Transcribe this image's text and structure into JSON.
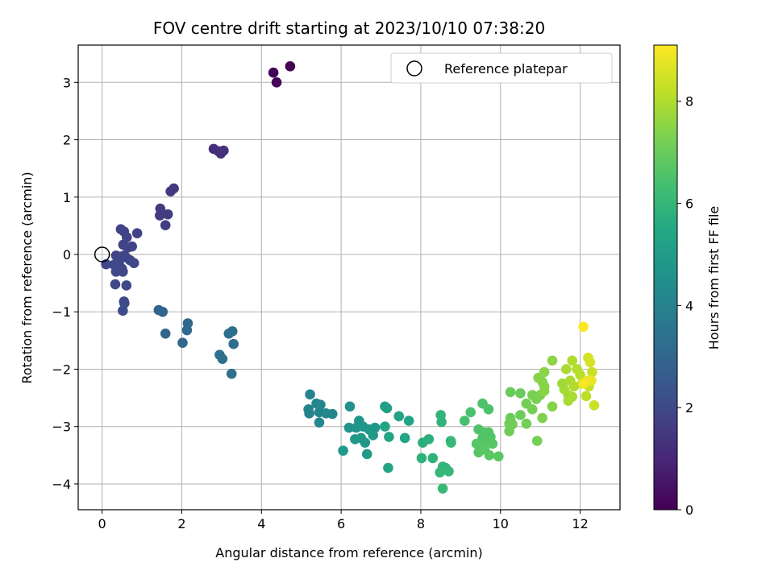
{
  "chart_data": {
    "type": "scatter",
    "title": "FOV centre drift starting at 2023/10/10 07:38:20",
    "xlabel": "Angular distance from reference (arcmin)",
    "ylabel": "Rotation from reference (arcmin)",
    "xlim": [
      -0.6,
      13.0
    ],
    "ylim": [
      -4.45,
      3.65
    ],
    "xticks": [
      0,
      2,
      4,
      6,
      8,
      10,
      12
    ],
    "yticks": [
      -4,
      -3,
      -2,
      -1,
      0,
      1,
      2,
      3
    ],
    "grid": true,
    "legend": {
      "placement": "top-right",
      "entries": [
        "Reference platepar"
      ]
    },
    "reference_point": {
      "x": 0,
      "y": 0,
      "label": "Reference platepar"
    },
    "colorbar": {
      "label": "Hours from first FF file",
      "colormap": "viridis",
      "range": [
        0,
        9.1
      ],
      "ticks": [
        0,
        2,
        4,
        6,
        8
      ]
    },
    "points": [
      {
        "x": 4.3,
        "y": 3.17,
        "c": 0.05
      },
      {
        "x": 4.38,
        "y": 3.0,
        "c": 0.1
      },
      {
        "x": 4.72,
        "y": 3.28,
        "c": 0.0
      },
      {
        "x": 2.8,
        "y": 1.84,
        "c": 1.2
      },
      {
        "x": 2.92,
        "y": 1.8,
        "c": 1.2
      },
      {
        "x": 2.98,
        "y": 1.76,
        "c": 1.25
      },
      {
        "x": 3.05,
        "y": 1.81,
        "c": 1.25
      },
      {
        "x": 1.72,
        "y": 1.1,
        "c": 1.5
      },
      {
        "x": 1.8,
        "y": 1.15,
        "c": 1.5
      },
      {
        "x": 1.46,
        "y": 0.8,
        "c": 1.6
      },
      {
        "x": 1.45,
        "y": 0.68,
        "c": 1.6
      },
      {
        "x": 1.65,
        "y": 0.7,
        "c": 1.6
      },
      {
        "x": 1.59,
        "y": 0.51,
        "c": 1.65
      },
      {
        "x": 0.47,
        "y": 0.44,
        "c": 1.75
      },
      {
        "x": 0.55,
        "y": 0.4,
        "c": 1.75
      },
      {
        "x": 0.62,
        "y": 0.3,
        "c": 1.8
      },
      {
        "x": 0.88,
        "y": 0.37,
        "c": 1.8
      },
      {
        "x": 0.53,
        "y": 0.17,
        "c": 1.8
      },
      {
        "x": 0.75,
        "y": 0.14,
        "c": 1.85
      },
      {
        "x": 0.65,
        "y": 0.12,
        "c": 1.85
      },
      {
        "x": 0.35,
        "y": -0.02,
        "c": 1.85
      },
      {
        "x": 0.45,
        "y": -0.04,
        "c": 1.9
      },
      {
        "x": 0.55,
        "y": -0.02,
        "c": 1.9
      },
      {
        "x": 0.6,
        "y": -0.05,
        "c": 1.9
      },
      {
        "x": 0.7,
        "y": -0.1,
        "c": 1.9
      },
      {
        "x": 0.8,
        "y": -0.15,
        "c": 1.95
      },
      {
        "x": 0.42,
        "y": -0.15,
        "c": 1.95
      },
      {
        "x": 0.3,
        "y": -0.18,
        "c": 1.95
      },
      {
        "x": 0.1,
        "y": -0.17,
        "c": 1.95
      },
      {
        "x": 0.35,
        "y": -0.3,
        "c": 2.0
      },
      {
        "x": 0.5,
        "y": -0.25,
        "c": 2.0
      },
      {
        "x": 0.52,
        "y": -0.3,
        "c": 2.0
      },
      {
        "x": 0.33,
        "y": -0.52,
        "c": 2.0
      },
      {
        "x": 0.61,
        "y": -0.54,
        "c": 2.0
      },
      {
        "x": 0.55,
        "y": -0.82,
        "c": 2.05
      },
      {
        "x": 0.56,
        "y": -0.85,
        "c": 2.05
      },
      {
        "x": 0.52,
        "y": -0.98,
        "c": 2.05
      },
      {
        "x": 1.42,
        "y": -0.97,
        "c": 2.9
      },
      {
        "x": 1.52,
        "y": -1.0,
        "c": 2.9
      },
      {
        "x": 1.59,
        "y": -1.38,
        "c": 3.0
      },
      {
        "x": 2.15,
        "y": -1.2,
        "c": 3.1
      },
      {
        "x": 2.13,
        "y": -1.32,
        "c": 3.1
      },
      {
        "x": 2.02,
        "y": -1.54,
        "c": 3.1
      },
      {
        "x": 3.18,
        "y": -1.38,
        "c": 3.3
      },
      {
        "x": 3.27,
        "y": -1.34,
        "c": 3.3
      },
      {
        "x": 3.3,
        "y": -1.56,
        "c": 3.3
      },
      {
        "x": 2.95,
        "y": -1.75,
        "c": 3.35
      },
      {
        "x": 3.02,
        "y": -1.82,
        "c": 3.35
      },
      {
        "x": 3.25,
        "y": -2.08,
        "c": 3.4
      },
      {
        "x": 5.22,
        "y": -2.44,
        "c": 4.0
      },
      {
        "x": 5.18,
        "y": -2.7,
        "c": 4.05
      },
      {
        "x": 5.2,
        "y": -2.77,
        "c": 4.05
      },
      {
        "x": 5.38,
        "y": -2.6,
        "c": 4.1
      },
      {
        "x": 5.48,
        "y": -2.62,
        "c": 4.1
      },
      {
        "x": 5.45,
        "y": -2.75,
        "c": 4.1
      },
      {
        "x": 5.62,
        "y": -2.77,
        "c": 4.15
      },
      {
        "x": 5.78,
        "y": -2.78,
        "c": 4.15
      },
      {
        "x": 5.45,
        "y": -2.93,
        "c": 4.2
      },
      {
        "x": 6.22,
        "y": -2.65,
        "c": 4.6
      },
      {
        "x": 6.45,
        "y": -2.9,
        "c": 4.65
      },
      {
        "x": 6.2,
        "y": -3.02,
        "c": 4.7
      },
      {
        "x": 6.38,
        "y": -3.02,
        "c": 4.7
      },
      {
        "x": 6.55,
        "y": -3.0,
        "c": 4.75
      },
      {
        "x": 6.7,
        "y": -3.05,
        "c": 4.75
      },
      {
        "x": 6.85,
        "y": -3.02,
        "c": 4.8
      },
      {
        "x": 6.35,
        "y": -3.22,
        "c": 4.8
      },
      {
        "x": 6.5,
        "y": -3.2,
        "c": 4.85
      },
      {
        "x": 6.6,
        "y": -3.28,
        "c": 4.85
      },
      {
        "x": 6.8,
        "y": -3.15,
        "c": 4.9
      },
      {
        "x": 6.05,
        "y": -3.42,
        "c": 4.9
      },
      {
        "x": 6.65,
        "y": -3.48,
        "c": 4.95
      },
      {
        "x": 7.1,
        "y": -2.65,
        "c": 5.1
      },
      {
        "x": 7.15,
        "y": -2.68,
        "c": 5.1
      },
      {
        "x": 7.45,
        "y": -2.82,
        "c": 5.2
      },
      {
        "x": 7.7,
        "y": -2.9,
        "c": 5.25
      },
      {
        "x": 7.1,
        "y": -3.0,
        "c": 5.25
      },
      {
        "x": 7.2,
        "y": -3.18,
        "c": 5.3
      },
      {
        "x": 7.6,
        "y": -3.2,
        "c": 5.3
      },
      {
        "x": 7.18,
        "y": -3.72,
        "c": 5.35
      },
      {
        "x": 8.05,
        "y": -3.28,
        "c": 5.7
      },
      {
        "x": 8.2,
        "y": -3.22,
        "c": 5.75
      },
      {
        "x": 8.02,
        "y": -3.55,
        "c": 5.8
      },
      {
        "x": 8.3,
        "y": -3.55,
        "c": 5.85
      },
      {
        "x": 8.5,
        "y": -2.8,
        "c": 5.9
      },
      {
        "x": 8.52,
        "y": -2.92,
        "c": 5.9
      },
      {
        "x": 8.55,
        "y": -3.7,
        "c": 5.95
      },
      {
        "x": 8.62,
        "y": -3.72,
        "c": 5.95
      },
      {
        "x": 8.48,
        "y": -3.8,
        "c": 6.0
      },
      {
        "x": 8.7,
        "y": -3.78,
        "c": 6.0
      },
      {
        "x": 8.75,
        "y": -3.25,
        "c": 6.05
      },
      {
        "x": 8.76,
        "y": -3.28,
        "c": 6.05
      },
      {
        "x": 8.55,
        "y": -4.08,
        "c": 6.1
      },
      {
        "x": 9.1,
        "y": -2.9,
        "c": 6.4
      },
      {
        "x": 9.25,
        "y": -2.75,
        "c": 6.45
      },
      {
        "x": 9.55,
        "y": -2.6,
        "c": 6.5
      },
      {
        "x": 9.7,
        "y": -2.7,
        "c": 6.5
      },
      {
        "x": 9.45,
        "y": -3.05,
        "c": 6.55
      },
      {
        "x": 9.6,
        "y": -3.1,
        "c": 6.55
      },
      {
        "x": 9.7,
        "y": -3.1,
        "c": 6.6
      },
      {
        "x": 9.75,
        "y": -3.18,
        "c": 6.6
      },
      {
        "x": 9.55,
        "y": -3.2,
        "c": 6.6
      },
      {
        "x": 9.4,
        "y": -3.3,
        "c": 6.65
      },
      {
        "x": 9.65,
        "y": -3.3,
        "c": 6.65
      },
      {
        "x": 9.8,
        "y": -3.3,
        "c": 6.7
      },
      {
        "x": 9.45,
        "y": -3.45,
        "c": 6.7
      },
      {
        "x": 9.6,
        "y": -3.4,
        "c": 6.7
      },
      {
        "x": 9.72,
        "y": -3.5,
        "c": 6.75
      },
      {
        "x": 9.95,
        "y": -3.52,
        "c": 6.75
      },
      {
        "x": 10.25,
        "y": -2.4,
        "c": 7.0
      },
      {
        "x": 10.5,
        "y": -2.42,
        "c": 7.0
      },
      {
        "x": 10.25,
        "y": -2.85,
        "c": 7.05
      },
      {
        "x": 10.5,
        "y": -2.8,
        "c": 7.05
      },
      {
        "x": 10.22,
        "y": -2.95,
        "c": 7.1
      },
      {
        "x": 10.3,
        "y": -2.96,
        "c": 7.1
      },
      {
        "x": 10.22,
        "y": -3.08,
        "c": 7.1
      },
      {
        "x": 10.65,
        "y": -2.95,
        "c": 7.15
      },
      {
        "x": 10.65,
        "y": -2.6,
        "c": 7.15
      },
      {
        "x": 10.8,
        "y": -2.7,
        "c": 7.2
      },
      {
        "x": 10.92,
        "y": -3.25,
        "c": 7.2
      },
      {
        "x": 10.8,
        "y": -2.45,
        "c": 7.25
      },
      {
        "x": 10.9,
        "y": -2.52,
        "c": 7.25
      },
      {
        "x": 11.0,
        "y": -2.45,
        "c": 7.3
      },
      {
        "x": 11.05,
        "y": -2.85,
        "c": 7.35
      },
      {
        "x": 11.3,
        "y": -2.65,
        "c": 7.4
      },
      {
        "x": 10.95,
        "y": -2.15,
        "c": 7.4
      },
      {
        "x": 11.05,
        "y": -2.22,
        "c": 7.45
      },
      {
        "x": 11.1,
        "y": -2.3,
        "c": 7.45
      },
      {
        "x": 11.1,
        "y": -2.38,
        "c": 7.5
      },
      {
        "x": 11.1,
        "y": -2.05,
        "c": 7.5
      },
      {
        "x": 11.3,
        "y": -1.85,
        "c": 7.55
      },
      {
        "x": 11.55,
        "y": -2.25,
        "c": 7.8
      },
      {
        "x": 11.6,
        "y": -2.35,
        "c": 7.85
      },
      {
        "x": 11.7,
        "y": -2.45,
        "c": 7.85
      },
      {
        "x": 11.7,
        "y": -2.55,
        "c": 7.9
      },
      {
        "x": 11.8,
        "y": -2.48,
        "c": 7.9
      },
      {
        "x": 11.65,
        "y": -2.0,
        "c": 7.95
      },
      {
        "x": 11.75,
        "y": -2.2,
        "c": 7.95
      },
      {
        "x": 11.85,
        "y": -2.3,
        "c": 8.0
      },
      {
        "x": 11.8,
        "y": -1.85,
        "c": 8.0
      },
      {
        "x": 11.92,
        "y": -2.0,
        "c": 8.05
      },
      {
        "x": 12.0,
        "y": -2.1,
        "c": 8.1
      },
      {
        "x": 12.05,
        "y": -2.25,
        "c": 8.15
      },
      {
        "x": 12.15,
        "y": -2.47,
        "c": 8.2
      },
      {
        "x": 12.22,
        "y": -2.3,
        "c": 8.3
      },
      {
        "x": 12.3,
        "y": -2.05,
        "c": 8.35
      },
      {
        "x": 12.35,
        "y": -2.63,
        "c": 8.4
      },
      {
        "x": 12.2,
        "y": -1.8,
        "c": 8.5
      },
      {
        "x": 12.25,
        "y": -1.88,
        "c": 8.55
      },
      {
        "x": 12.28,
        "y": -2.2,
        "c": 8.8
      },
      {
        "x": 12.18,
        "y": -2.2,
        "c": 8.9
      },
      {
        "x": 12.08,
        "y": -2.25,
        "c": 9.0
      },
      {
        "x": 12.08,
        "y": -1.26,
        "c": 9.1
      }
    ]
  }
}
